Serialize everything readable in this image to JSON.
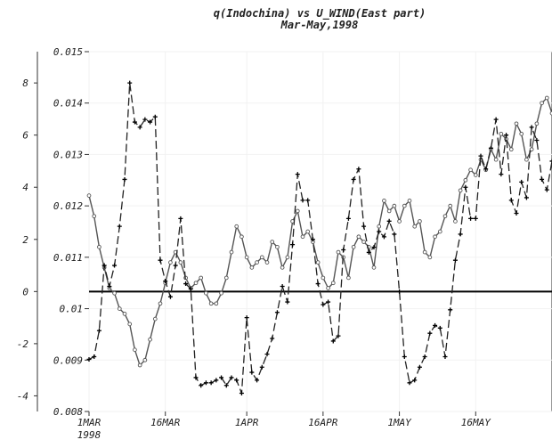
{
  "chart_data": {
    "type": "line",
    "title": "q(Indochina) vs U_WIND(East part)",
    "subtitle": "Mar-May,1998",
    "x_axis": {
      "tick_labels": [
        "1MAR",
        "16MAR",
        "1APR",
        "16APR",
        "1MAY",
        "16MAY"
      ],
      "tick_days": [
        0,
        15,
        31,
        46,
        61,
        76
      ],
      "year_label": "1998",
      "range": [
        0,
        91
      ]
    },
    "y_left": {
      "range": [
        0.008,
        0.015
      ],
      "tick_values": [
        0.008,
        0.009,
        0.01,
        0.011,
        0.012,
        0.013,
        0.014,
        0.015
      ],
      "tick_labels": [
        "0.008",
        "0.009",
        "0.01",
        "0.011",
        "0.012",
        "0.013",
        "0.014",
        "0.015"
      ]
    },
    "y_right_inner": {
      "range": [
        -4.6,
        9.2
      ],
      "tick_values": [
        -4,
        -2,
        0,
        2,
        4,
        6,
        8
      ],
      "tick_labels": [
        "-4",
        "-2",
        "0",
        "2",
        "4",
        "6",
        "8"
      ]
    },
    "zero_line": 0,
    "series": [
      {
        "style": "solid-circles",
        "axis": "left",
        "color": "#555555",
        "x": [
          0,
          1,
          2,
          3,
          4,
          5,
          6,
          7,
          8,
          9,
          10,
          11,
          12,
          13,
          14,
          15,
          16,
          17,
          18,
          19,
          20,
          21,
          22,
          23,
          24,
          25,
          26,
          27,
          28,
          29,
          30,
          31,
          32,
          33,
          34,
          35,
          36,
          37,
          38,
          39,
          40,
          41,
          42,
          43,
          44,
          45,
          46,
          47,
          48,
          49,
          50,
          51,
          52,
          53,
          54,
          55,
          56,
          57,
          58,
          59,
          60,
          61,
          62,
          63,
          64,
          65,
          66,
          67,
          68,
          69,
          70,
          71,
          72,
          73,
          74,
          75,
          76,
          77,
          78,
          79,
          80,
          81,
          82,
          83,
          84,
          85,
          86,
          87,
          88,
          89,
          90,
          91
        ],
        "y": [
          0.0122,
          0.0118,
          0.0112,
          0.0108,
          0.0104,
          0.0103,
          0.01,
          0.0099,
          0.0097,
          0.0092,
          0.0089,
          0.009,
          0.0094,
          0.0098,
          0.0101,
          0.0105,
          0.0109,
          0.0111,
          0.0109,
          0.0106,
          0.0104,
          0.0105,
          0.0106,
          0.0103,
          0.0101,
          0.0101,
          0.0103,
          0.0106,
          0.0111,
          0.0116,
          0.0114,
          0.011,
          0.0108,
          0.0109,
          0.011,
          0.0109,
          0.0113,
          0.0112,
          0.0108,
          0.011,
          0.0117,
          0.0119,
          0.0114,
          0.0115,
          0.0113,
          0.0109,
          0.0106,
          0.0104,
          0.0105,
          0.0111,
          0.011,
          0.0106,
          0.0112,
          0.0114,
          0.0113,
          0.0112,
          0.0108,
          0.0116,
          0.0121,
          0.0119,
          0.012,
          0.0117,
          0.012,
          0.0121,
          0.0116,
          0.0117,
          0.0111,
          0.011,
          0.0114,
          0.0115,
          0.0118,
          0.012,
          0.0117,
          0.0123,
          0.0125,
          0.0127,
          0.0126,
          0.0129,
          0.0127,
          0.0131,
          0.0129,
          0.0134,
          0.0133,
          0.0131,
          0.0136,
          0.0134,
          0.0129,
          0.0131,
          0.0136,
          0.014,
          0.0141,
          0.0138
        ]
      },
      {
        "style": "dashed-plus",
        "axis": "right",
        "color": "#222222",
        "x": [
          0,
          1,
          2,
          3,
          4,
          5,
          6,
          7,
          8,
          9,
          10,
          11,
          12,
          13,
          14,
          15,
          16,
          17,
          18,
          19,
          20,
          21,
          22,
          23,
          24,
          25,
          26,
          27,
          28,
          29,
          30,
          31,
          32,
          33,
          34,
          35,
          36,
          37,
          38,
          39,
          40,
          41,
          42,
          43,
          44,
          45,
          46,
          47,
          48,
          49,
          50,
          51,
          52,
          53,
          54,
          55,
          56,
          57,
          58,
          59,
          60,
          61,
          62,
          63,
          64,
          65,
          66,
          67,
          68,
          69,
          70,
          71,
          72,
          73,
          74,
          75,
          76,
          77,
          78,
          79,
          80,
          81,
          82,
          83,
          84,
          85,
          86,
          87,
          88,
          89,
          90,
          91
        ],
        "y": [
          -2.6,
          -2.5,
          -1.5,
          1.0,
          0.2,
          1.0,
          2.5,
          4.3,
          8.0,
          6.5,
          6.3,
          6.6,
          6.5,
          6.7,
          1.2,
          0.4,
          -0.2,
          1.0,
          2.8,
          0.3,
          0.1,
          -3.3,
          -3.6,
          -3.5,
          -3.5,
          -3.4,
          -3.3,
          -3.6,
          -3.3,
          -3.4,
          -3.9,
          -1.0,
          -3.1,
          -3.4,
          -2.9,
          -2.4,
          -1.8,
          -0.8,
          0.2,
          -0.4,
          1.8,
          4.5,
          3.5,
          3.5,
          2.0,
          0.3,
          -0.5,
          -0.4,
          -1.9,
          -1.7,
          1.6,
          2.8,
          4.3,
          4.7,
          2.5,
          1.5,
          1.7,
          2.3,
          2.1,
          2.7,
          2.2,
          0.0,
          -2.5,
          -3.5,
          -3.4,
          -2.9,
          -2.5,
          -1.6,
          -1.3,
          -1.4,
          -2.5,
          -0.7,
          1.2,
          2.2,
          4.0,
          2.8,
          2.8,
          5.2,
          4.7,
          5.5,
          6.6,
          4.5,
          6.0,
          3.5,
          3.0,
          4.2,
          3.6,
          6.3,
          5.8,
          4.3,
          3.9,
          5.0
        ]
      }
    ]
  }
}
